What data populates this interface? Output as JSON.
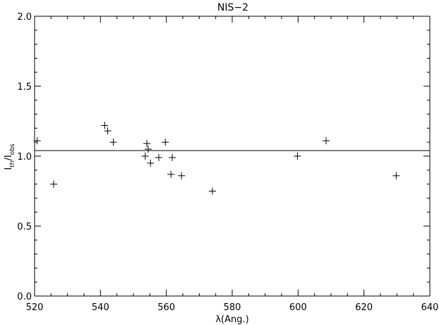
{
  "chart_data": {
    "type": "scatter",
    "title": "NIS−2",
    "xlabel": "λ(Ang.)",
    "ylabel": {
      "main": "I",
      "sub1": "th",
      "sep": "/I",
      "sub2": "obs"
    },
    "xlim": [
      520,
      640
    ],
    "ylim": [
      0.0,
      2.0
    ],
    "xticks": [
      520,
      540,
      560,
      580,
      600,
      620,
      640
    ],
    "yticks": [
      "0.0",
      "0.5",
      "1.0",
      "1.5",
      "2.0"
    ],
    "x_minor_step": 5,
    "y_minor_step": 0.1,
    "marker": "plus",
    "grid": false,
    "reference_line": 1.04,
    "points": [
      [
        520.8,
        1.11
      ],
      [
        525.8,
        0.8
      ],
      [
        541.3,
        1.22
      ],
      [
        542.2,
        1.18
      ],
      [
        543.9,
        1.1
      ],
      [
        553.6,
        1.0
      ],
      [
        554.1,
        1.09
      ],
      [
        554.5,
        1.05
      ],
      [
        555.2,
        0.95
      ],
      [
        557.7,
        0.99
      ],
      [
        559.7,
        1.1
      ],
      [
        561.4,
        0.87
      ],
      [
        561.8,
        0.99
      ],
      [
        564.6,
        0.86
      ],
      [
        574.0,
        0.75
      ],
      [
        599.8,
        1.0
      ],
      [
        608.5,
        1.11
      ],
      [
        629.8,
        0.86
      ]
    ]
  }
}
